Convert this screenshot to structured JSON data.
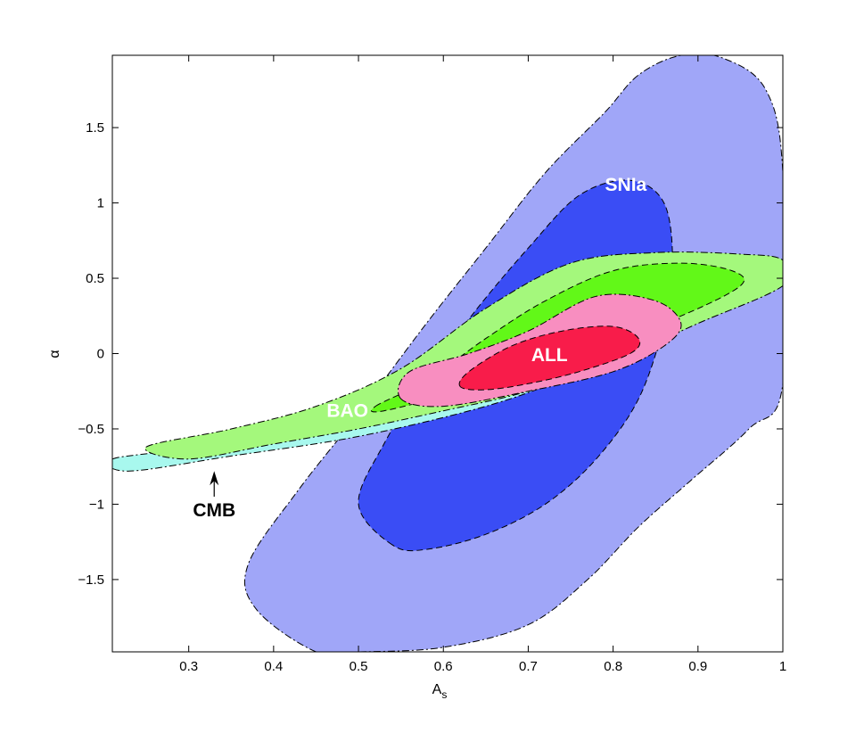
{
  "chart_data": {
    "type": "contour",
    "title": "",
    "xlabel": "A",
    "xlabel_sub": "s",
    "ylabel": "α",
    "xlim": [
      0.21,
      1.0
    ],
    "ylim": [
      -1.98,
      1.98
    ],
    "xticks": [
      0.3,
      0.4,
      0.5,
      0.6,
      0.7,
      0.8,
      0.9,
      1.0
    ],
    "xtick_labels": [
      "0.3",
      "0.4",
      "0.5",
      "0.6",
      "0.7",
      "0.8",
      "0.9",
      "1"
    ],
    "yticks": [
      -1.5,
      -1.0,
      -0.5,
      0.0,
      0.5,
      1.0,
      1.5
    ],
    "ytick_labels": [
      "−1.5",
      "−1",
      "−0.5",
      "0",
      "0.5",
      "1",
      "1.5"
    ],
    "grid": false,
    "series": [
      {
        "name": "SNIa",
        "color_outer": "#a0a6f8",
        "color_inner": "#3a4df5",
        "outer": [
          [
            0.45,
            -1.98
          ],
          [
            0.38,
            -1.7
          ],
          [
            0.37,
            -1.4
          ],
          [
            0.43,
            -0.9
          ],
          [
            0.5,
            -0.4
          ],
          [
            0.58,
            0.2
          ],
          [
            0.65,
            0.7
          ],
          [
            0.72,
            1.2
          ],
          [
            0.79,
            1.6
          ],
          [
            0.83,
            1.85
          ],
          [
            0.88,
            1.98
          ],
          [
            0.93,
            1.96
          ],
          [
            0.98,
            1.75
          ],
          [
            1.0,
            1.2
          ],
          [
            1.0,
            -0.2
          ],
          [
            0.96,
            -0.5
          ],
          [
            0.89,
            -0.85
          ],
          [
            0.83,
            -1.15
          ],
          [
            0.77,
            -1.5
          ],
          [
            0.7,
            -1.8
          ],
          [
            0.6,
            -1.95
          ],
          [
            0.5,
            -1.98
          ]
        ],
        "inner": [
          [
            0.54,
            -1.27
          ],
          [
            0.5,
            -1.0
          ],
          [
            0.53,
            -0.6
          ],
          [
            0.58,
            -0.15
          ],
          [
            0.64,
            0.3
          ],
          [
            0.7,
            0.7
          ],
          [
            0.76,
            1.05
          ],
          [
            0.82,
            1.15
          ],
          [
            0.86,
            1.0
          ],
          [
            0.87,
            0.6
          ],
          [
            0.86,
            0.2
          ],
          [
            0.83,
            -0.3
          ],
          [
            0.78,
            -0.7
          ],
          [
            0.72,
            -1.0
          ],
          [
            0.65,
            -1.2
          ],
          [
            0.58,
            -1.3
          ]
        ]
      },
      {
        "name": "CMB",
        "color_outer": "#a8f8ee",
        "outer": [
          [
            0.21,
            -0.7
          ],
          [
            0.3,
            -0.62
          ],
          [
            0.45,
            -0.4
          ],
          [
            0.6,
            -0.1
          ],
          [
            0.75,
            0.25
          ],
          [
            0.85,
            0.35
          ],
          [
            0.85,
            0.1
          ],
          [
            0.75,
            -0.15
          ],
          [
            0.65,
            -0.35
          ],
          [
            0.5,
            -0.55
          ],
          [
            0.35,
            -0.68
          ],
          [
            0.23,
            -0.78
          ]
        ]
      },
      {
        "name": "BAO",
        "color_outer": "#a4f87c",
        "color_inner": "#62f818",
        "outer": [
          [
            0.25,
            -0.62
          ],
          [
            0.35,
            -0.5
          ],
          [
            0.45,
            -0.35
          ],
          [
            0.55,
            -0.1
          ],
          [
            0.65,
            0.3
          ],
          [
            0.75,
            0.6
          ],
          [
            0.85,
            0.67
          ],
          [
            0.95,
            0.66
          ],
          [
            1.0,
            0.62
          ],
          [
            1.0,
            0.45
          ],
          [
            0.9,
            0.2
          ],
          [
            0.8,
            -0.05
          ],
          [
            0.7,
            -0.25
          ],
          [
            0.6,
            -0.38
          ],
          [
            0.5,
            -0.5
          ],
          [
            0.4,
            -0.6
          ],
          [
            0.3,
            -0.7
          ]
        ],
        "inner": [
          [
            0.52,
            -0.35
          ],
          [
            0.58,
            -0.18
          ],
          [
            0.65,
            0.1
          ],
          [
            0.72,
            0.35
          ],
          [
            0.8,
            0.55
          ],
          [
            0.88,
            0.6
          ],
          [
            0.94,
            0.55
          ],
          [
            0.95,
            0.45
          ],
          [
            0.88,
            0.25
          ],
          [
            0.78,
            0.05
          ],
          [
            0.7,
            -0.1
          ],
          [
            0.62,
            -0.25
          ],
          [
            0.53,
            -0.38
          ]
        ]
      },
      {
        "name": "ALL",
        "color_outer": "#f88ec0",
        "color_inner": "#f81c4a",
        "outer": [
          [
            0.55,
            -0.3
          ],
          [
            0.56,
            -0.12
          ],
          [
            0.63,
            0.0
          ],
          [
            0.7,
            0.15
          ],
          [
            0.78,
            0.38
          ],
          [
            0.85,
            0.35
          ],
          [
            0.88,
            0.2
          ],
          [
            0.86,
            0.05
          ],
          [
            0.8,
            -0.12
          ],
          [
            0.7,
            -0.25
          ],
          [
            0.6,
            -0.35
          ]
        ],
        "inner": [
          [
            0.62,
            -0.22
          ],
          [
            0.63,
            -0.12
          ],
          [
            0.68,
            0.05
          ],
          [
            0.74,
            0.15
          ],
          [
            0.8,
            0.18
          ],
          [
            0.83,
            0.1
          ],
          [
            0.82,
            0.0
          ],
          [
            0.76,
            -0.12
          ],
          [
            0.7,
            -0.2
          ],
          [
            0.65,
            -0.24
          ]
        ]
      }
    ],
    "annotations": [
      {
        "text": "SNIa",
        "x": 0.815,
        "y": 1.08,
        "color": "#ffffff"
      },
      {
        "text": "ALL",
        "x": 0.725,
        "y": -0.05,
        "color": "#ffffff"
      },
      {
        "text": "BAO",
        "x": 0.487,
        "y": -0.42,
        "color": "#ffffff"
      },
      {
        "text": "CMB",
        "x": 0.33,
        "y": -1.08,
        "color": "#000000",
        "arrow_to": [
          0.33,
          -0.78
        ]
      }
    ]
  }
}
